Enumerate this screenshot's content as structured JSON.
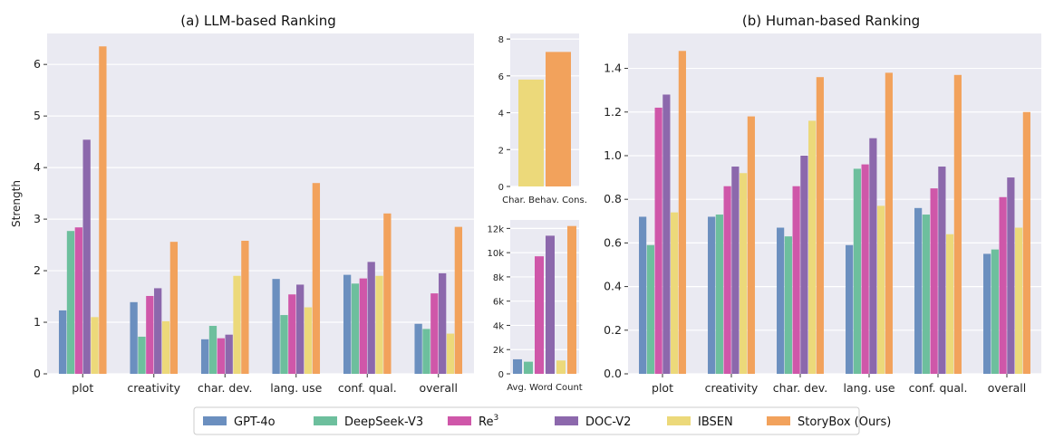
{
  "legend": [
    {
      "name": "GPT-4o",
      "color": "#6b8fbf"
    },
    {
      "name": "DeepSeek-V3",
      "color": "#6dbf9d"
    },
    {
      "name": "Re",
      "sup": "3",
      "color": "#cf57a9"
    },
    {
      "name": "DOC-V2",
      "color": "#8c68ac"
    },
    {
      "name": "IBSEN",
      "color": "#ecd97a"
    },
    {
      "name": "StoryBox (Ours)",
      "color": "#f2a25c"
    }
  ],
  "chart_data": [
    {
      "id": "llm",
      "type": "bar",
      "title": "(a) LLM-based Ranking",
      "ylabel": "Strength",
      "xlabel": "",
      "ylim": [
        0,
        6.6
      ],
      "yticks": [
        0,
        1,
        2,
        3,
        4,
        5,
        6
      ],
      "ytick_labels": [
        "0",
        "1",
        "2",
        "3",
        "4",
        "5",
        "6"
      ],
      "categories": [
        "plot",
        "creativity",
        "char. dev.",
        "lang. use",
        "conf. qual.",
        "overall"
      ],
      "series": [
        {
          "name": "GPT-4o",
          "values": [
            1.23,
            1.39,
            0.67,
            1.84,
            1.92,
            0.97
          ]
        },
        {
          "name": "DeepSeek-V3",
          "values": [
            2.77,
            0.72,
            0.93,
            1.14,
            1.75,
            0.87
          ]
        },
        {
          "name": "Re3",
          "values": [
            2.84,
            1.51,
            0.69,
            1.54,
            1.85,
            1.56
          ]
        },
        {
          "name": "DOC-V2",
          "values": [
            4.54,
            1.66,
            0.76,
            1.73,
            2.17,
            1.95
          ]
        },
        {
          "name": "IBSEN",
          "values": [
            1.1,
            1.02,
            1.9,
            1.29,
            1.9,
            0.78
          ]
        },
        {
          "name": "StoryBox (Ours)",
          "values": [
            6.35,
            2.56,
            2.58,
            3.7,
            3.11,
            2.85
          ]
        }
      ]
    },
    {
      "id": "behav",
      "type": "bar",
      "title": "",
      "xlabel": "Char. Behav. Cons.",
      "ylim": [
        0,
        8.3
      ],
      "yticks": [
        0,
        2,
        4,
        6,
        8
      ],
      "ytick_labels": [
        "0",
        "2",
        "4",
        "6",
        "8"
      ],
      "categories": [
        "Char. Behav. Cons."
      ],
      "series": [
        {
          "name": "IBSEN",
          "values": [
            5.8
          ]
        },
        {
          "name": "StoryBox (Ours)",
          "values": [
            7.3
          ]
        }
      ]
    },
    {
      "id": "words",
      "type": "bar",
      "title": "",
      "xlabel": "Avg. Word Count",
      "ylim": [
        0,
        12700
      ],
      "yticks": [
        0,
        2000,
        4000,
        6000,
        8000,
        10000,
        12000
      ],
      "ytick_labels": [
        "0",
        "2k",
        "4k",
        "6k",
        "8k",
        "10k",
        "12k"
      ],
      "categories": [
        "Avg. Word Count"
      ],
      "series": [
        {
          "name": "GPT-4o",
          "values": [
            1200
          ]
        },
        {
          "name": "DeepSeek-V3",
          "values": [
            1000
          ]
        },
        {
          "name": "Re3",
          "values": [
            9700
          ]
        },
        {
          "name": "DOC-V2",
          "values": [
            11400
          ]
        },
        {
          "name": "IBSEN",
          "values": [
            1100
          ]
        },
        {
          "name": "StoryBox (Ours)",
          "values": [
            12200
          ]
        }
      ]
    },
    {
      "id": "human",
      "type": "bar",
      "title": "(b) Human-based Ranking",
      "xlabel": "",
      "ylim": [
        0,
        1.56
      ],
      "yticks": [
        0,
        0.2,
        0.4,
        0.6,
        0.8,
        1.0,
        1.2,
        1.4
      ],
      "ytick_labels": [
        "0.0",
        "0.2",
        "0.4",
        "0.6",
        "0.8",
        "1.0",
        "1.2",
        "1.4"
      ],
      "categories": [
        "plot",
        "creativity",
        "char. dev.",
        "lang. use",
        "conf. qual.",
        "overall"
      ],
      "series": [
        {
          "name": "GPT-4o",
          "values": [
            0.72,
            0.72,
            0.67,
            0.59,
            0.76,
            0.55
          ]
        },
        {
          "name": "DeepSeek-V3",
          "values": [
            0.59,
            0.73,
            0.63,
            0.94,
            0.73,
            0.57
          ]
        },
        {
          "name": "Re3",
          "values": [
            1.22,
            0.86,
            0.86,
            0.96,
            0.85,
            0.81
          ]
        },
        {
          "name": "DOC-V2",
          "values": [
            1.28,
            0.95,
            1.0,
            1.08,
            0.95,
            0.9
          ]
        },
        {
          "name": "IBSEN",
          "values": [
            0.74,
            0.92,
            1.16,
            0.77,
            0.64,
            0.67
          ]
        },
        {
          "name": "StoryBox (Ours)",
          "values": [
            1.48,
            1.18,
            1.36,
            1.38,
            1.37,
            1.2
          ]
        }
      ]
    }
  ]
}
